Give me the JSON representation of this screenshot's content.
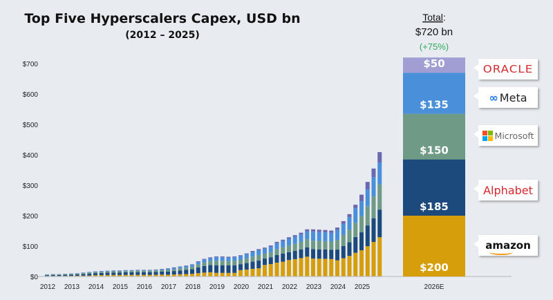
{
  "chart_data": {
    "type": "bar",
    "stacked": true,
    "title": "Top Five Hyperscalers Capex, USD bn",
    "subtitle": "(2012 – 2025)",
    "ylim": [
      0,
      700
    ],
    "y_ticks": [
      "$0",
      "$100",
      "$200",
      "$300",
      "$400",
      "$500",
      "$600",
      "$700"
    ],
    "y_tick_values": [
      0,
      100,
      200,
      300,
      400,
      500,
      600,
      700
    ],
    "x_tick_labels": [
      "2012",
      "2013",
      "2014",
      "2015",
      "2016",
      "2017",
      "2018",
      "2019",
      "2020",
      "2021",
      "2022",
      "2023",
      "2024",
      "2025"
    ],
    "grid": false,
    "periods_per_year": 4,
    "series": [
      {
        "name": "Amazon",
        "color": "#d69e0a",
        "values": [
          1.4,
          1.6,
          1.6,
          1.8,
          2,
          2.2,
          2.6,
          3,
          4.3,
          4.5,
          4.8,
          5,
          5,
          5.3,
          5.3,
          5.5,
          5.5,
          5.5,
          5.8,
          6.3,
          5.9,
          6.6,
          7.3,
          7.9,
          8.8,
          11,
          12.8,
          13.9,
          11.9,
          11.9,
          11.7,
          11.9,
          21,
          22.8,
          25.2,
          27,
          38,
          40.8,
          45.6,
          48.4,
          54.2,
          57.1,
          60.5,
          65.1,
          58.9,
          58.5,
          58.1,
          57.4,
          53.1,
          60.1,
          67.7,
          77.9,
          86.1,
          99.5,
          113.6,
          129
        ]
      },
      {
        "name": "Alphabet",
        "color": "#1d4a7c",
        "values": [
          2.8,
          3.2,
          3.2,
          3.6,
          4,
          4.4,
          5.2,
          6,
          6.8,
          7.2,
          7.6,
          8,
          8,
          8.4,
          8.4,
          8.8,
          8.8,
          8.8,
          9.2,
          10,
          10.3,
          11.4,
          12.5,
          13.7,
          15.2,
          19,
          22,
          23.9,
          25.1,
          25.1,
          24.7,
          25.1,
          19.6,
          21.3,
          23.5,
          25.2,
          20.9,
          22.4,
          25.1,
          26.6,
          25.8,
          27.2,
          28.8,
          31,
          31,
          30.8,
          30.6,
          30.2,
          35.4,
          40,
          45.1,
          51.9,
          59.2,
          68.4,
          78.1,
          91
        ]
      },
      {
        "name": "Microsoft",
        "color": "#6e9a86",
        "values": [
          1.8,
          2,
          2,
          2.3,
          2.5,
          2.8,
          3.3,
          3.8,
          3.4,
          3.6,
          3.8,
          4,
          4,
          4.2,
          4.2,
          4.4,
          4.4,
          4.4,
          4.6,
          5,
          5.4,
          6,
          6.6,
          7.2,
          8,
          10,
          11.6,
          12.6,
          14.5,
          14.5,
          14.3,
          14.5,
          14,
          15.2,
          16.8,
          18,
          16.2,
          17.3,
          19.4,
          20.6,
          21.9,
          23.1,
          24.5,
          26.4,
          27.9,
          27.7,
          27.5,
          27.2,
          32.2,
          36.4,
          41,
          47.2,
          53.8,
          62.2,
          71,
          83
        ]
      },
      {
        "name": "Meta",
        "color": "#4a8fd9",
        "values": [
          0.7,
          0.8,
          0.8,
          0.9,
          1,
          1.1,
          1.3,
          1.5,
          1.7,
          1.8,
          1.9,
          2,
          2,
          2.1,
          2.1,
          2.2,
          2.2,
          2.2,
          2.3,
          2.5,
          4.1,
          4.5,
          5,
          5.4,
          6,
          7.5,
          8.7,
          9.5,
          11.9,
          11.9,
          11.7,
          11.9,
          12.6,
          13.7,
          15.1,
          16.2,
          16.2,
          17.3,
          19.4,
          20.6,
          21.9,
          23.1,
          24.5,
          26.4,
          29.5,
          29.3,
          29.1,
          28.7,
          32.2,
          36.4,
          41,
          47.2,
          48.4,
          56,
          63.9,
          72
        ]
      },
      {
        "name": "Oracle",
        "color": "#6a68b0",
        "values": [
          0.3,
          0.4,
          0.4,
          0.4,
          0.5,
          0.5,
          0.6,
          0.7,
          0.8,
          0.9,
          0.9,
          1,
          1,
          1,
          1,
          1.1,
          1.1,
          1.1,
          1.1,
          1.2,
          1.3,
          1.5,
          1.6,
          1.8,
          2,
          2.5,
          2.9,
          3.1,
          2.6,
          2.6,
          2.6,
          2.6,
          2.8,
          3,
          3.4,
          3.6,
          3.7,
          4.2,
          4.5,
          4.8,
          5.2,
          5.5,
          5.7,
          6.1,
          7.7,
          7.7,
          7.7,
          7.5,
          8.1,
          9.1,
          10.2,
          11.8,
          21.5,
          24.9,
          28.4,
          34
        ]
      }
    ],
    "forecast": {
      "label": "2026E",
      "total_heading": "Total",
      "total_label": "$720 bn",
      "total_value": 720,
      "growth_label": "(+75%)",
      "segments": [
        {
          "company": "Amazon",
          "value": 200,
          "label": "$200",
          "color": "#d69e0a"
        },
        {
          "company": "Alphabet",
          "value": 185,
          "label": "$185",
          "color": "#1d4a7c"
        },
        {
          "company": "Microsoft",
          "value": 150,
          "label": "$150",
          "color": "#6e9a86"
        },
        {
          "company": "Meta",
          "value": 135,
          "label": "$135",
          "color": "#4a8fd9"
        },
        {
          "company": "Oracle",
          "value": 50,
          "label": "$50",
          "color": "#a09ed2"
        }
      ]
    }
  },
  "logos": {
    "oracle": "ORACLE",
    "meta": "Meta",
    "meta_symbol": "∞",
    "microsoft": "Microsoft",
    "alphabet": "Alphabet",
    "amazon": "amazon"
  },
  "colors": {
    "background": "#e8ebef",
    "growth": "#2eaa5c"
  }
}
